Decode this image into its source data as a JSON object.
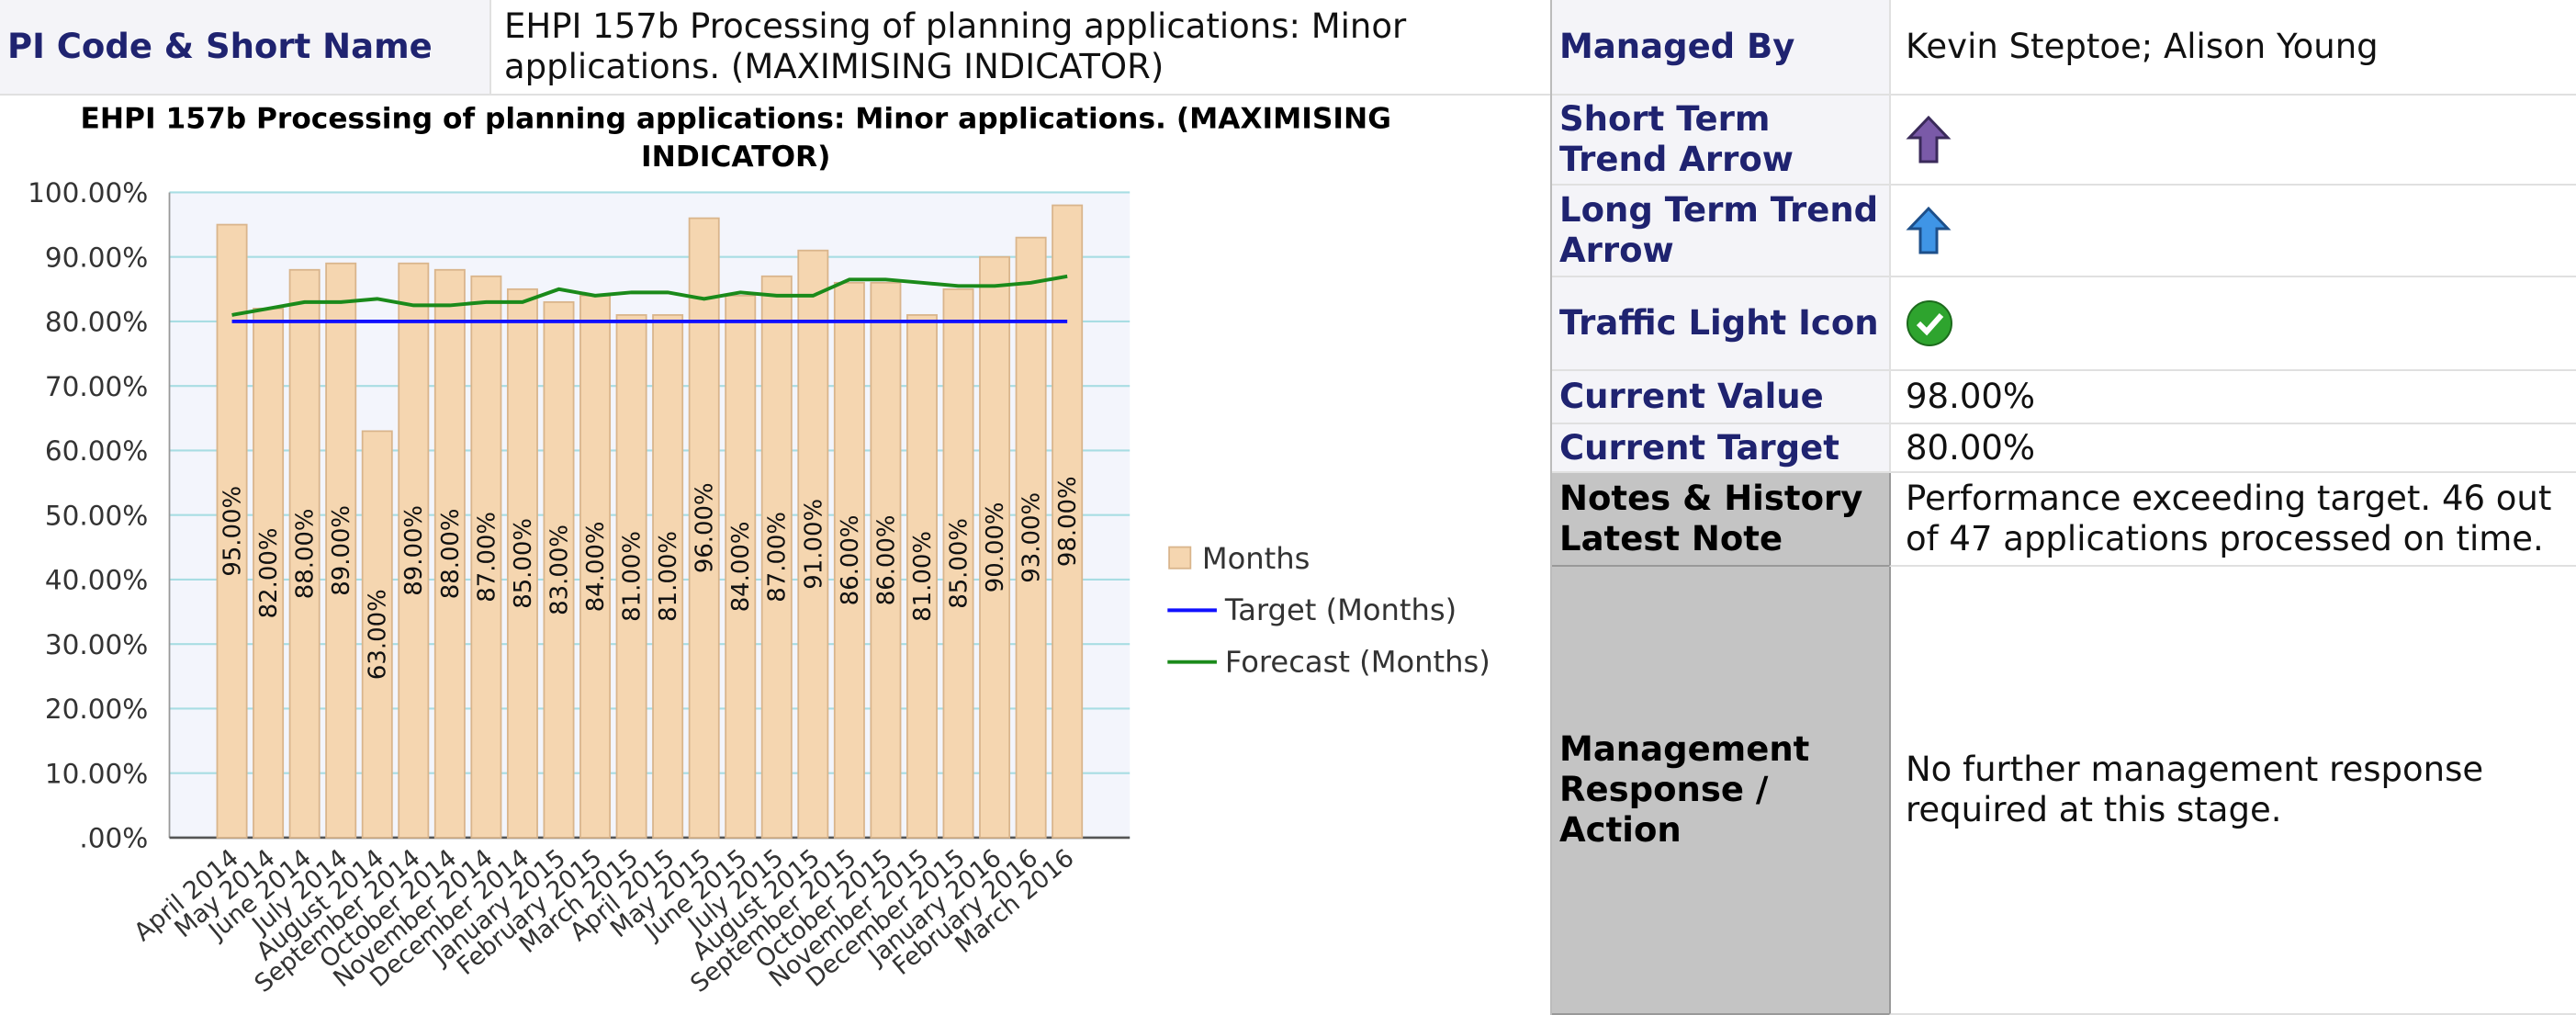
{
  "header": {
    "label": "PI Code & Short Name",
    "value": "EHPI 157b Processing of planning applications: Minor applications. (MAXIMISING INDICATOR)"
  },
  "chart_data": {
    "type": "bar",
    "title": "EHPI 157b Processing of planning applications: Minor applications. (MAXIMISING INDICATOR)",
    "categories": [
      "April 2014",
      "May 2014",
      "June 2014",
      "July 2014",
      "August 2014",
      "September 2014",
      "October 2014",
      "November 2014",
      "December 2014",
      "January 2015",
      "February 2015",
      "March 2015",
      "April 2015",
      "May 2015",
      "June 2015",
      "July 2015",
      "August 2015",
      "September 2015",
      "October 2015",
      "November 2015",
      "December 2015",
      "January 2016",
      "February 2016",
      "March 2016"
    ],
    "series": [
      {
        "name": "Months",
        "type": "bar",
        "color": "#f5d6b0",
        "values": [
          95,
          82,
          88,
          89,
          63,
          89,
          88,
          87,
          85,
          83,
          84,
          81,
          81,
          96,
          84,
          87,
          91,
          86,
          86,
          81,
          85,
          90,
          93,
          98
        ],
        "value_labels": [
          "95.00%",
          "82.00%",
          "88.00%",
          "89.00%",
          "63.00%",
          "89.00%",
          "88.00%",
          "87.00%",
          "85.00%",
          "83.00%",
          "84.00%",
          "81.00%",
          "81.00%",
          "96.00%",
          "84.00%",
          "87.00%",
          "91.00%",
          "86.00%",
          "86.00%",
          "81.00%",
          "85.00%",
          "90.00%",
          "93.00%",
          "98.00%"
        ]
      },
      {
        "name": "Target (Months)",
        "type": "line",
        "color": "#1010ff",
        "values": [
          80,
          80,
          80,
          80,
          80,
          80,
          80,
          80,
          80,
          80,
          80,
          80,
          80,
          80,
          80,
          80,
          80,
          80,
          80,
          80,
          80,
          80,
          80,
          80
        ]
      },
      {
        "name": "Forecast (Months)",
        "type": "line",
        "color": "#1a8a1a",
        "values": [
          81,
          82,
          83,
          83,
          83.5,
          82.5,
          82.5,
          83,
          83,
          85,
          84,
          84.5,
          84.5,
          83.5,
          84.5,
          84,
          84,
          86.5,
          86.5,
          86,
          85.5,
          85.5,
          86,
          87
        ]
      }
    ],
    "ylim": [
      0,
      100
    ],
    "yticks": [
      {
        "value": 0,
        "label": ".00%"
      },
      {
        "value": 10,
        "label": "10.00%"
      },
      {
        "value": 20,
        "label": "20.00%"
      },
      {
        "value": 30,
        "label": "30.00%"
      },
      {
        "value": 40,
        "label": "40.00%"
      },
      {
        "value": 50,
        "label": "50.00%"
      },
      {
        "value": 60,
        "label": "60.00%"
      },
      {
        "value": 70,
        "label": "70.00%"
      },
      {
        "value": 80,
        "label": "80.00%"
      },
      {
        "value": 90,
        "label": "90.00%"
      },
      {
        "value": 100,
        "label": "100.00%"
      }
    ],
    "grid": true,
    "legend": "right"
  },
  "details": [
    {
      "label": "Managed By",
      "value": "Kevin Steptoe; Alison Young"
    },
    {
      "label": "Short Term Trend Arrow"
    },
    {
      "label": "Long Term Trend Arrow"
    },
    {
      "label": "Traffic Light Icon"
    },
    {
      "label": "Current Value",
      "value": "98.00%"
    },
    {
      "label": "Current Target",
      "value": "80.00%"
    },
    {
      "label": "Notes & History Latest Note",
      "value": "Performance exceeding target. 46 out of 47 applications processed on time."
    },
    {
      "label": "Management Response / Action",
      "value": "No further management response required at this stage."
    }
  ]
}
